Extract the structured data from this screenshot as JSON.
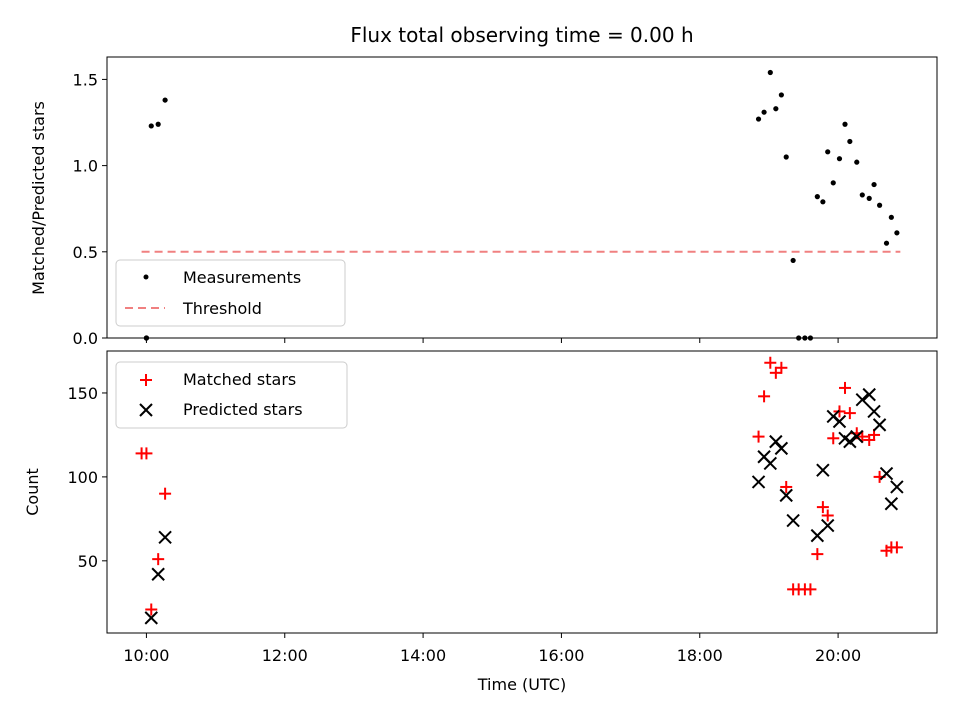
{
  "chart_data": [
    {
      "type": "scatter",
      "title": "Flux total observing time = 0.00 h",
      "xlabel": "",
      "ylabel": "Matched/Predicted stars",
      "xlim_hours": [
        9.43,
        21.43
      ],
      "ylim": [
        0,
        1.63
      ],
      "yticks": [
        0.0,
        0.5,
        1.0,
        1.5
      ],
      "ytick_labels": [
        "0.0",
        "0.5",
        "1.0",
        "1.5"
      ],
      "legend_position": "lower-left",
      "series": [
        {
          "name": "Measurements",
          "style": "dot",
          "color": "#000000",
          "x": [
            10.07,
            10.17,
            10.27,
            10.0,
            10.0,
            18.85,
            18.93,
            19.02,
            19.1,
            19.18,
            19.25,
            19.35,
            19.43,
            19.52,
            19.6,
            19.7,
            19.78,
            19.85,
            19.93,
            20.02,
            20.1,
            20.17,
            20.27,
            20.35,
            20.45,
            20.52,
            20.6,
            20.7,
            20.77,
            20.85
          ],
          "y": [
            1.23,
            1.24,
            1.38,
            0.0,
            0.0,
            1.27,
            1.31,
            1.54,
            1.33,
            1.41,
            1.05,
            0.45,
            0.0,
            0.0,
            0.0,
            0.82,
            0.79,
            1.08,
            0.9,
            1.04,
            1.24,
            1.14,
            1.02,
            0.83,
            0.81,
            0.89,
            0.77,
            0.55,
            0.7,
            0.61
          ]
        },
        {
          "name": "Threshold",
          "style": "dashed-line",
          "color": "#f08080",
          "x": [
            9.93,
            20.9
          ],
          "y": [
            0.5,
            0.5
          ]
        }
      ]
    },
    {
      "type": "scatter",
      "title": "",
      "xlabel": "Time (UTC)",
      "ylabel": "Count",
      "xlim_hours": [
        9.43,
        21.43
      ],
      "ylim": [
        7,
        175
      ],
      "yticks": [
        50,
        100,
        150
      ],
      "ytick_labels": [
        "50",
        "100",
        "150"
      ],
      "xticks_hours": [
        10,
        12,
        14,
        16,
        18,
        20
      ],
      "xtick_labels": [
        "10:00",
        "12:00",
        "14:00",
        "16:00",
        "18:00",
        "20:00"
      ],
      "legend_position": "upper-left",
      "series": [
        {
          "name": "Matched stars",
          "style": "plus",
          "color": "#ff0000",
          "x": [
            9.93,
            10.0,
            10.07,
            10.17,
            10.27,
            18.85,
            18.93,
            19.02,
            19.1,
            19.18,
            19.25,
            19.35,
            19.43,
            19.52,
            19.6,
            19.7,
            19.78,
            19.85,
            19.93,
            20.02,
            20.1,
            20.17,
            20.27,
            20.35,
            20.45,
            20.52,
            20.6,
            20.7,
            20.77,
            20.85
          ],
          "y": [
            114,
            114,
            21,
            51,
            90,
            124,
            148,
            168,
            162,
            165,
            94,
            33,
            33,
            33,
            33,
            54,
            82,
            77,
            123,
            139,
            153,
            138,
            126,
            124,
            122,
            125,
            100,
            56,
            58,
            58
          ]
        },
        {
          "name": "Predicted stars",
          "style": "cross",
          "color": "#000000",
          "x": [
            10.07,
            10.17,
            10.27,
            18.85,
            18.93,
            19.02,
            19.1,
            19.18,
            19.25,
            19.35,
            19.7,
            19.78,
            19.85,
            19.93,
            20.02,
            20.1,
            20.17,
            20.27,
            20.35,
            20.45,
            20.52,
            20.6,
            20.7,
            20.77,
            20.85
          ],
          "y": [
            16,
            42,
            64,
            97,
            112,
            108,
            121,
            117,
            89,
            74,
            65,
            104,
            71,
            136,
            133,
            123,
            121,
            124,
            146,
            149,
            139,
            131,
            102,
            84,
            94
          ]
        }
      ]
    }
  ]
}
